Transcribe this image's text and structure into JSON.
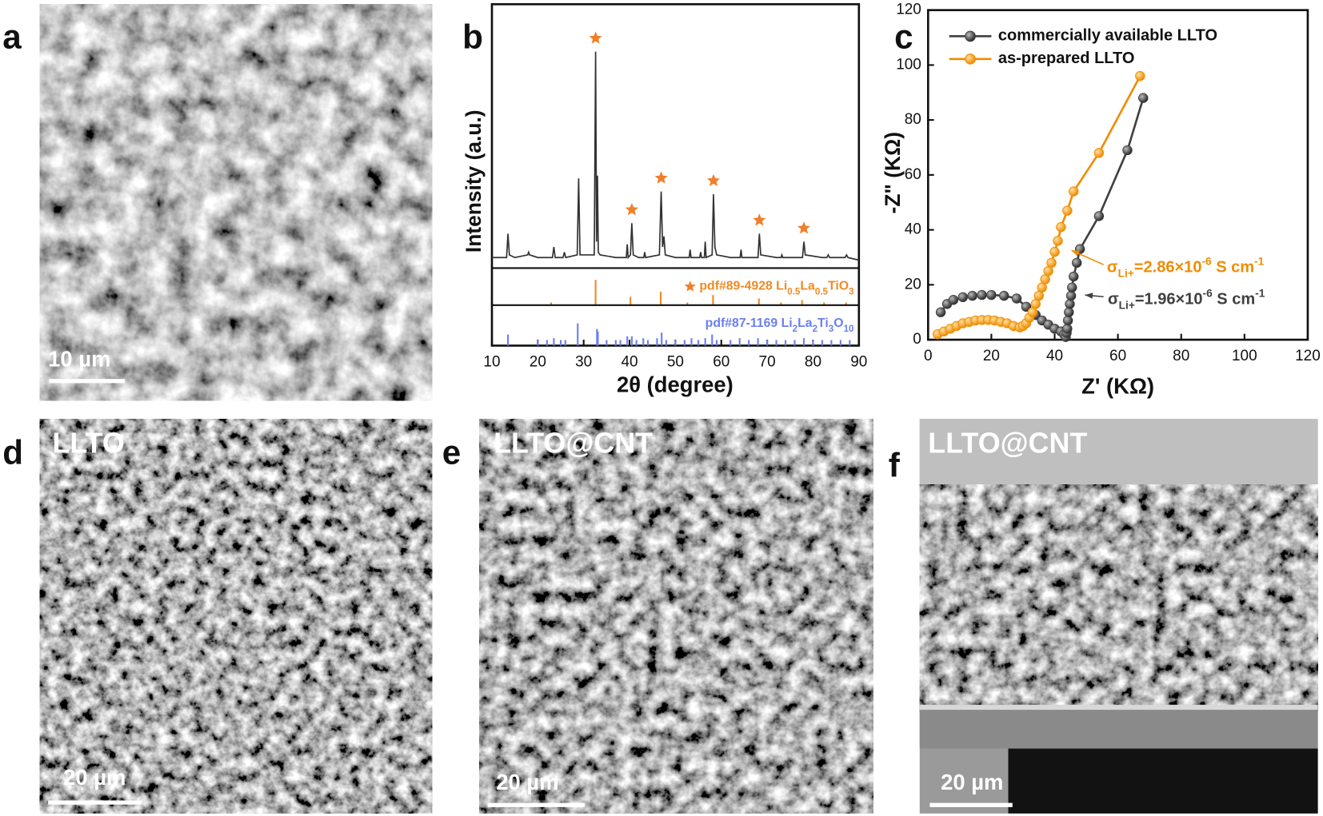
{
  "panels": {
    "a": {
      "label": "a",
      "scale_bar": "10 µm"
    },
    "d": {
      "label": "d",
      "title": "LLTO",
      "scale_bar": "20 µm"
    },
    "e": {
      "label": "e",
      "title": "LLTO@CNT",
      "scale_bar": "20 µm"
    },
    "f": {
      "label": "f",
      "title": "LLTO@CNT",
      "scale_bar": "20 µm"
    }
  },
  "chart_data": [
    {
      "type": "line",
      "label": "b",
      "xlabel": "2θ (degree)",
      "ylabel": "Intensity (a.u.)",
      "xlim": [
        10,
        90
      ],
      "xticks": [
        10,
        20,
        30,
        40,
        50,
        60,
        70,
        80,
        90
      ],
      "ylim": [
        0,
        100
      ],
      "series": [
        {
          "color": "#333333",
          "x": [
            10,
            12,
            13.2,
            13.5,
            13.8,
            15,
            17.8,
            18,
            18.2,
            20,
            23.2,
            23.5,
            23.8,
            25.5,
            25.8,
            26.1,
            28.6,
            28.9,
            29.2,
            32.3,
            32.6,
            32.8,
            33.0,
            33.2,
            33.6,
            37,
            39.3,
            39.5,
            39.7,
            40.2,
            40.5,
            40.8,
            42,
            43.1,
            43.3,
            43.5,
            46.5,
            46.9,
            47.2,
            47.5,
            47.8,
            50,
            53,
            53.2,
            53.4,
            55.3,
            55.5,
            55.7,
            56.3,
            56.5,
            56.7,
            58.0,
            58.3,
            58.6,
            59,
            62,
            64.1,
            64.3,
            64.5,
            68.0,
            68.3,
            68.6,
            72,
            73,
            73.2,
            73.4,
            77.7,
            78.0,
            78.3,
            82,
            83,
            83.3,
            83.6,
            87,
            87.3,
            87.6,
            90
          ],
          "values": [
            4,
            4,
            4,
            13,
            5,
            4,
            5,
            6,
            5,
            4,
            4,
            8,
            4,
            4,
            6,
            4,
            5,
            34,
            5,
            5,
            82,
            10,
            35,
            6,
            5,
            4,
            4,
            9,
            4,
            5,
            17,
            5,
            4,
            4,
            6,
            4,
            5,
            29,
            8,
            12,
            5,
            4,
            4,
            7,
            4,
            4,
            6,
            4,
            4,
            10,
            4,
            5,
            28,
            8,
            5,
            4,
            4,
            7,
            4,
            4,
            13,
            5,
            4,
            4,
            5,
            4,
            4,
            10,
            5,
            4,
            4,
            5,
            4,
            4,
            5,
            4,
            3
          ]
        }
      ],
      "marked_peaks": [
        32.6,
        40.5,
        46.9,
        58.3,
        68.3,
        78.0
      ],
      "marker_color": "#f07f2a",
      "references": [
        {
          "name": "pdf#89-4928 Li0.5La0.5TiO3",
          "color": "#f08a24",
          "x": [
            22.9,
            32.6,
            40.2,
            46.8,
            52.6,
            58.2,
            68.2,
            73.0,
            77.6,
            82.4,
            87.2
          ],
          "values": [
            8,
            75,
            25,
            40,
            8,
            30,
            20,
            8,
            15,
            8,
            8
          ]
        },
        {
          "name": "pdf#87-1169 Li2La2Ti3O10",
          "color": "#6b7ff0",
          "x": [
            13.5,
            20,
            22,
            23.5,
            25,
            26,
            28.7,
            32.9,
            33.1,
            35,
            37,
            38,
            39.5,
            40.5,
            41.5,
            43,
            44,
            46,
            47,
            48,
            50,
            52,
            53.5,
            55,
            56.5,
            58,
            59,
            62,
            64,
            66,
            68,
            70,
            72,
            74,
            76,
            78,
            80,
            82,
            84,
            86,
            88
          ],
          "values": [
            30,
            15,
            15,
            20,
            15,
            15,
            60,
            45,
            38,
            15,
            15,
            15,
            25,
            25,
            15,
            20,
            15,
            20,
            35,
            15,
            15,
            15,
            20,
            15,
            20,
            30,
            15,
            15,
            20,
            15,
            20,
            15,
            15,
            15,
            15,
            20,
            15,
            15,
            15,
            15,
            15
          ]
        }
      ]
    },
    {
      "type": "line",
      "label": "c",
      "xlabel": "Z' (KΩ)",
      "ylabel": "-Z\" (KΩ)",
      "markers": true,
      "xlim": [
        0,
        120
      ],
      "xticks": [
        0,
        20,
        40,
        60,
        80,
        100,
        120
      ],
      "ylim": [
        0,
        120
      ],
      "yticks": [
        0,
        20,
        40,
        60,
        80,
        100,
        120
      ],
      "series": [
        {
          "name": "commercially available LLTO",
          "color": "#404040",
          "x": [
            4,
            6,
            8,
            11,
            14,
            17,
            20,
            24,
            28,
            31,
            34,
            36,
            38,
            40,
            42,
            43,
            43.5,
            43.8,
            44,
            44.2,
            44.5,
            44.8,
            45.2,
            45.5,
            46,
            47,
            48,
            54,
            63,
            68
          ],
          "values": [
            10,
            13,
            14.5,
            15.5,
            16,
            16.3,
            16.3,
            16,
            15,
            12,
            9,
            7,
            5.5,
            4,
            3,
            2,
            1,
            2.5,
            4,
            7,
            10,
            13,
            16,
            19,
            23,
            28,
            33,
            45,
            69,
            88
          ]
        },
        {
          "name": "as-prepared LLTO",
          "color": "#f08c00",
          "x": [
            3,
            5,
            7,
            9,
            11,
            13,
            15,
            17,
            19,
            21,
            23,
            25,
            27,
            29,
            30,
            31,
            32,
            33,
            34,
            35,
            36,
            37,
            38,
            39,
            40,
            41,
            42,
            44,
            46,
            54,
            67
          ],
          "values": [
            2,
            3,
            4,
            5,
            6,
            6.5,
            7,
            7.2,
            7.2,
            7,
            6.5,
            6,
            5,
            4.5,
            5,
            6,
            8,
            10,
            13,
            16,
            19,
            22,
            25,
            28,
            32,
            36,
            41,
            47,
            54,
            68,
            96
          ]
        }
      ],
      "annotations": [
        {
          "color": "#f08c00",
          "segments": [
            {
              "text": "σ"
            },
            {
              "sub": "Li+"
            },
            {
              "text": "=2.86×10"
            },
            {
              "sup": "-6"
            },
            {
              "text": " S cm"
            },
            {
              "sup": "-1"
            }
          ]
        },
        {
          "color": "#404040",
          "segments": [
            {
              "text": "σ"
            },
            {
              "sub": "Li+"
            },
            {
              "text": "=1.96×10"
            },
            {
              "sup": "-6"
            },
            {
              "text": " S cm"
            },
            {
              "sup": "-1"
            }
          ]
        }
      ]
    }
  ]
}
